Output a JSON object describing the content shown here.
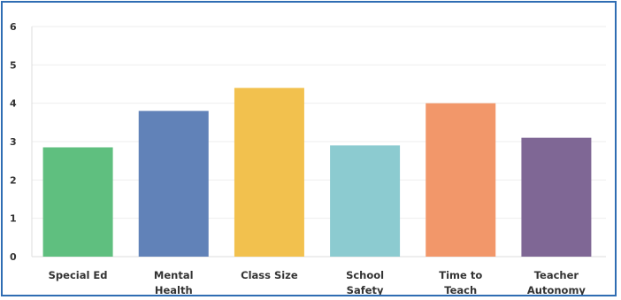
{
  "chart_data": {
    "type": "bar",
    "categories": [
      [
        "Special Ed"
      ],
      [
        "Mental",
        "Health"
      ],
      [
        "Class Size"
      ],
      [
        "School",
        "Safety"
      ],
      [
        "Time to",
        "Teach"
      ],
      [
        "Teacher",
        "Autonomy"
      ]
    ],
    "values": [
      2.85,
      3.8,
      4.4,
      2.9,
      4.0,
      3.1
    ],
    "colors": [
      "#5fbf7f",
      "#6182b8",
      "#f2c14e",
      "#8ccbd0",
      "#f2976a",
      "#7f6795"
    ],
    "yticks": [
      "0",
      "1",
      "2",
      "3",
      "4",
      "5",
      "6"
    ],
    "ylim": [
      0,
      6
    ],
    "grid": true,
    "title": "",
    "xlabel": "",
    "ylabel": ""
  },
  "colors": {
    "border": "#2f6db3",
    "grid": "#eeeeee",
    "axis": "#dddddd"
  }
}
